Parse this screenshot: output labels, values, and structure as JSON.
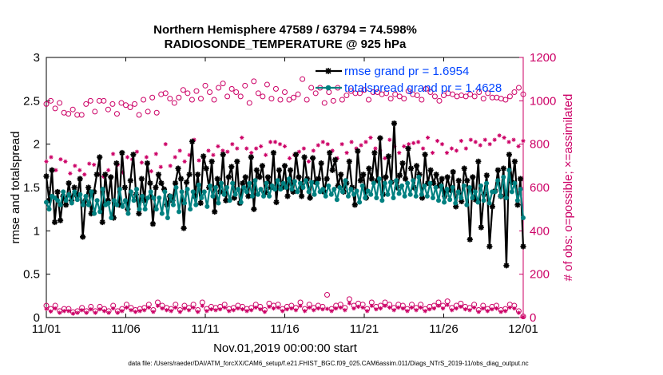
{
  "chart_data": {
    "type": "line",
    "title": "Northern Hemisphere 47589 / 63794 = 74.598%",
    "subtitle": "RADIOSONDE_TEMPERATURE @ 925 hPa",
    "xlabel": "Nov.01,2019 00:00:00 start",
    "ylabel": "rmse and totalspread",
    "ylabel_right": "# of obs: o=possible; ×=assimilated",
    "xlim": [
      0,
      30
    ],
    "ylim": [
      0,
      3
    ],
    "ylim_right": [
      0,
      1200
    ],
    "x_ticks": [
      0,
      5,
      10,
      15,
      20,
      25,
      30
    ],
    "x_tick_labels": [
      "11/01",
      "11/06",
      "11/11",
      "11/16",
      "11/21",
      "11/26",
      "12/01"
    ],
    "y_ticks": [
      0,
      0.5,
      1,
      1.5,
      2,
      2.5,
      3
    ],
    "y_tick_labels": [
      "0",
      "0.5",
      "1",
      "1.5",
      "2",
      "2.5",
      "3"
    ],
    "y_right_ticks": [
      0,
      200,
      400,
      600,
      800,
      1000,
      1200
    ],
    "y_right_tick_labels": [
      "0",
      "200",
      "400",
      "600",
      "800",
      "1000",
      "1200"
    ],
    "legend": {
      "position": "top-right",
      "entries": [
        "rmse grand pr = 1.6954",
        "totalspread grand pr = 1.4628"
      ]
    },
    "footnote": "data file: /Users/raeder/DAI/ATM_forcXX/CAM6_setup/f.e21.FHIST_BGC.f09_025.CAM6assim.011/Diags_NTrS_2019-11/obs_diag_output.nc",
    "colors": {
      "rmse": "#000000",
      "totalspread": "#008080",
      "counts": "#cc0066",
      "legend_text": "#0044ff"
    },
    "series": [
      {
        "name": "rmse",
        "axis": "left",
        "values": [
          1.63,
          1.35,
          1.7,
          1.1,
          1.45,
          1.12,
          1.4,
          1.3,
          1.55,
          1.35,
          1.5,
          1.4,
          1.6,
          0.93,
          1.35,
          1.5,
          1.2,
          1.45,
          1.65,
          1.85,
          1.1,
          1.65,
          1.35,
          1.62,
          1.15,
          1.78,
          1.3,
          1.9,
          1.5,
          1.25,
          1.58,
          1.88,
          1.42,
          1.2,
          1.6,
          1.35,
          1.78,
          1.55,
          1.08,
          1.5,
          1.65,
          1.55,
          1.48,
          1.3,
          1.4,
          1.35,
          1.55,
          1.72,
          1.6,
          1.03,
          1.56,
          1.65,
          2.03,
          1.4,
          1.65,
          1.32,
          1.86,
          1.72,
          1.5,
          1.8,
          1.22,
          1.6,
          1.45,
          1.88,
          1.35,
          1.62,
          1.74,
          1.38,
          1.8,
          1.32,
          1.55,
          1.62,
          1.4,
          1.85,
          1.25,
          1.7,
          1.62,
          1.75,
          1.44,
          1.62,
          1.5,
          1.9,
          1.33,
          1.7,
          1.5,
          1.75,
          1.4,
          1.7,
          1.45,
          1.88,
          1.62,
          1.4,
          1.85,
          1.6,
          1.38,
          1.84,
          1.56,
          1.6,
          1.78,
          1.45,
          1.6,
          1.9,
          1.7,
          1.82,
          1.52,
          1.65,
          1.45,
          1.55,
          1.8,
          1.5,
          1.3,
          1.92,
          1.58,
          1.65,
          1.38,
          1.72,
          1.6,
          1.9,
          1.58,
          2.07,
          1.42,
          1.62,
          1.86,
          1.56,
          2.24,
          1.5,
          1.64,
          1.78,
          1.6,
          1.95,
          1.72,
          1.5,
          1.75,
          1.65,
          1.38,
          1.88,
          1.55,
          1.7,
          1.55,
          1.65,
          1.52,
          1.6,
          1.4,
          1.62,
          1.47,
          1.68,
          1.28,
          1.58,
          1.34,
          1.72,
          1.58,
          0.9,
          1.62,
          1.36,
          1.8,
          1.04,
          1.42,
          1.64,
          0.82,
          1.28,
          1.46,
          1.7,
          1.4,
          1.72,
          0.6,
          1.88,
          1.56,
          1.8,
          1.3,
          1.6,
          0.82
        ]
      },
      {
        "name": "totalspread",
        "axis": "left",
        "values": [
          1.33,
          1.25,
          1.4,
          1.38,
          1.35,
          1.3,
          1.45,
          1.35,
          1.42,
          1.32,
          1.45,
          1.36,
          1.42,
          1.3,
          1.4,
          1.3,
          1.45,
          1.2,
          1.35,
          1.22,
          1.48,
          1.3,
          1.32,
          1.15,
          1.35,
          1.3,
          1.48,
          1.28,
          1.35,
          1.2,
          1.45,
          1.35,
          1.48,
          1.25,
          1.4,
          1.25,
          1.38,
          1.45,
          1.38,
          1.25,
          1.38,
          1.2,
          1.45,
          1.15,
          1.4,
          1.3,
          1.5,
          1.22,
          1.45,
          1.32,
          1.48,
          1.25,
          1.45,
          1.3,
          1.53,
          1.38,
          1.45,
          1.28,
          1.52,
          1.4,
          1.5,
          1.32,
          1.55,
          1.42,
          1.5,
          1.35,
          1.55,
          1.42,
          1.48,
          1.33,
          1.5,
          1.45,
          1.55,
          1.4,
          1.58,
          1.42,
          1.48,
          1.4,
          1.55,
          1.4,
          1.52,
          1.48,
          1.58,
          1.48,
          1.55,
          1.5,
          1.6,
          1.48,
          1.57,
          1.45,
          1.55,
          1.5,
          1.58,
          1.45,
          1.56,
          1.42,
          1.55,
          1.45,
          1.48,
          1.4,
          1.52,
          1.42,
          1.48,
          1.36,
          1.5,
          1.45,
          1.58,
          1.4,
          1.48,
          1.42,
          1.46,
          1.33,
          1.52,
          1.38,
          1.46,
          1.42,
          1.55,
          1.38,
          1.6,
          1.35,
          1.55,
          1.42,
          1.56,
          1.38,
          1.58,
          1.43,
          1.52,
          1.4,
          1.55,
          1.42,
          1.58,
          1.4,
          1.62,
          1.42,
          1.52,
          1.4,
          1.55,
          1.38,
          1.5,
          1.35,
          1.52,
          1.33,
          1.48,
          1.36,
          1.5,
          1.32,
          1.45,
          1.38,
          1.52,
          1.3,
          1.5,
          1.38,
          1.45,
          1.33,
          1.52,
          1.35,
          1.55,
          1.32,
          1.45,
          1.45,
          1.58,
          1.4,
          1.62,
          1.38,
          1.7,
          1.45,
          1.55,
          1.35,
          1.48,
          1.15
        ]
      },
      {
        "name": "obs possible (high)",
        "axis": "right",
        "marker": "circle",
        "values": [
          985,
          1000,
          965,
          990,
          945,
          940,
          960,
          935,
          935,
          985,
          1000,
          950,
          1000,
          1000,
          960,
          985,
          940,
          990,
          980,
          970,
          985,
          935,
          1005,
          950,
          1015,
          945,
          1030,
          1035,
          1010,
          990,
          1015,
          1050,
          1035,
          1005,
          1045,
          1010,
          1070,
          1040,
          1005,
          1060,
          1080,
          1020,
          1055,
          1040,
          1020,
          1070,
          990,
          1090,
          1035,
          1020,
          1075,
          1010,
          1055,
          1005,
          1040,
          1005,
          1015,
          1030,
          1100,
          1005,
          1060,
          1035,
          1060,
          990,
          1040,
          1000,
          1060,
          1005,
          1025,
          1045,
          1035,
          1035,
          1050,
          1005,
          1040,
          1040,
          1030,
          1035,
          1010,
          1030,
          1020,
          1010,
          1045,
          1030,
          1025,
          1005,
          1055,
          1040,
          1020,
          1000,
          1025,
          1035,
          1030,
          1020,
          1025,
          1020,
          1030,
          1020,
          1040,
          1010,
          1035,
          1015,
          1015,
          1010,
          1005,
          1020,
          1040,
          1060,
          1030
        ]
      },
      {
        "name": "obs assimilated (high)",
        "axis": "right",
        "marker": "asterisk",
        "values": [
          720,
          740,
          680,
          730,
          720,
          665,
          700,
          680,
          660,
          710,
          705,
          660,
          650,
          680,
          755,
          705,
          670,
          740,
          730,
          765,
          715,
          740,
          675,
          755,
          695,
          800,
          700,
          740,
          770,
          720,
          750,
          820,
          725,
          740,
          770,
          750,
          790,
          770,
          765,
          800,
          780,
          830,
          780,
          760,
          780,
          790,
          750,
          810,
          810,
          800,
          790,
          735,
          750,
          765,
          780,
          720,
          770,
          795,
          810,
          800,
          770,
          735,
          800,
          760,
          810,
          780,
          795,
          810,
          830,
          780,
          770,
          735,
          820,
          790,
          760,
          790,
          800,
          805,
          810,
          780,
          830,
          760,
          815,
          800,
          760,
          780,
          770,
          815,
          780,
          820,
          810,
          795,
          820,
          800,
          820,
          840,
          830,
          810,
          820,
          790,
          815
        ]
      },
      {
        "name": "obs possible (low)",
        "axis": "right",
        "marker": "circle",
        "values": [
          55,
          40,
          55,
          30,
          40,
          40,
          25,
          30,
          45,
          30,
          50,
          30,
          50,
          40,
          30,
          55,
          30,
          40,
          60,
          45,
          35,
          40,
          45,
          60,
          35,
          70,
          55,
          45,
          40,
          60,
          35,
          55,
          45,
          60,
          35,
          70,
          40,
          50,
          45,
          50,
          60,
          40,
          45,
          55,
          50,
          40,
          45,
          60,
          50,
          35,
          65,
          55,
          60,
          40,
          50,
          55,
          45,
          70,
          40,
          60,
          45,
          55,
          50,
          105,
          40,
          55,
          60,
          45,
          85,
          55,
          65,
          60,
          40,
          70,
          50,
          55,
          70,
          60,
          45,
          60,
          55,
          40,
          60,
          45,
          60,
          40,
          50,
          55,
          70,
          55,
          75,
          45,
          55,
          65,
          50,
          45,
          60,
          35,
          55,
          40,
          50,
          55,
          35,
          40,
          60,
          55,
          30,
          5
        ]
      },
      {
        "name": "obs assimilated (low)",
        "axis": "right",
        "marker": "asterisk",
        "values": [
          40,
          28,
          42,
          22,
          30,
          30,
          18,
          22,
          34,
          22,
          38,
          22,
          38,
          30,
          22,
          42,
          22,
          30,
          46,
          34,
          26,
          30,
          34,
          46,
          26,
          54,
          42,
          34,
          30,
          46,
          26,
          42,
          34,
          46,
          26,
          54,
          30,
          38,
          34,
          38,
          46,
          30,
          34,
          42,
          38,
          30,
          34,
          46,
          38,
          26,
          50,
          42,
          46,
          30,
          38,
          42,
          34,
          54,
          30,
          46,
          34,
          42,
          38,
          40,
          30,
          42,
          46,
          34,
          66,
          42,
          50,
          46,
          30,
          54,
          38,
          42,
          54,
          46,
          34,
          46,
          42,
          30,
          46,
          34,
          46,
          30,
          38,
          42,
          54,
          42,
          58,
          34,
          42,
          50,
          38,
          34,
          46,
          26,
          42,
          30,
          38,
          42,
          26,
          30,
          46,
          42,
          22,
          3
        ]
      }
    ]
  }
}
